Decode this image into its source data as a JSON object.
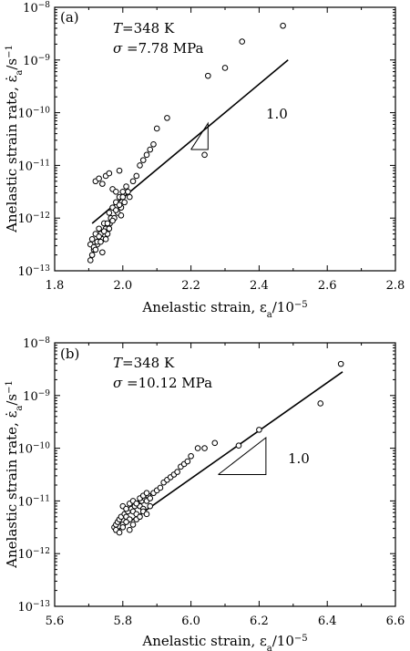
{
  "chart_data": [
    {
      "type": "scatter",
      "panel_label": "(a)",
      "annotations": {
        "temperature": "=348 K",
        "T_symbol": "T",
        "stress": " =7.78 MPa",
        "sigma_symbol": "σ",
        "slope": "1.0"
      },
      "xlabel": "Anelastic strain, ε",
      "xlabel_sub": "a",
      "xlabel_unit": "/10",
      "xlabel_sup": "−5",
      "ylabel": "Anelastic strain rate, ε̇",
      "ylabel_sub": "a",
      "ylabel_unit": "/s",
      "ylabel_sup": "−1",
      "xlim": [
        1.8,
        2.8
      ],
      "ylim_log10": [
        -13,
        -8
      ],
      "y_scale": "log",
      "x_ticks": [
        "1.8",
        "2.0",
        "2.2",
        "2.4",
        "2.6",
        "2.8"
      ],
      "y_ticks": [
        {
          "base": "10",
          "exp": "−13"
        },
        {
          "base": "10",
          "exp": "−12"
        },
        {
          "base": "10",
          "exp": "−11"
        },
        {
          "base": "10",
          "exp": "−10"
        },
        {
          "base": "10",
          "exp": "−9"
        },
        {
          "base": "10",
          "exp": "−8"
        }
      ],
      "fit_line": {
        "x": [
          1.91,
          2.485
        ],
        "log10_y": [
          -12.1,
          -9.0
        ]
      },
      "slope_triangle": {
        "x": [
          2.2,
          2.25
        ],
        "log10_y": [
          -10.7,
          -10.2
        ]
      },
      "points": {
        "x": [
          1.905,
          1.91,
          1.915,
          1.92,
          1.925,
          1.93,
          1.935,
          1.94,
          1.945,
          1.95,
          1.955,
          1.96,
          1.962,
          1.965,
          1.97,
          1.975,
          1.98,
          1.985,
          1.99,
          1.995,
          2.0,
          2.005,
          2.01,
          2.015,
          2.02,
          2.03,
          2.04,
          2.05,
          2.06,
          2.07,
          2.08,
          2.09,
          2.1,
          2.13,
          2.24,
          2.25,
          2.3,
          2.35,
          2.47,
          1.905,
          1.91,
          1.915,
          1.92,
          1.925,
          1.93,
          1.935,
          1.94,
          1.945,
          1.95,
          1.955,
          1.96,
          1.97,
          1.98,
          1.99,
          1.995,
          2.0,
          1.92,
          1.93,
          1.94,
          1.95,
          1.96,
          1.97,
          1.98,
          1.99
        ],
        "log10_y": [
          -12.5,
          -12.4,
          -12.6,
          -12.3,
          -12.5,
          -12.2,
          -12.3,
          -12.4,
          -12.1,
          -12.2,
          -12.3,
          -11.9,
          -12.1,
          -12.0,
          -11.8,
          -12.0,
          -11.7,
          -11.9,
          -11.6,
          -11.8,
          -11.5,
          -11.7,
          -11.4,
          -11.5,
          -11.6,
          -11.3,
          -11.2,
          -11.0,
          -10.9,
          -10.8,
          -10.7,
          -10.6,
          -10.3,
          -10.1,
          -10.8,
          -9.3,
          -9.15,
          -8.65,
          -8.35,
          -12.8,
          -12.7,
          -12.55,
          -12.6,
          -12.45,
          -12.35,
          -12.45,
          -12.65,
          -12.25,
          -12.4,
          -12.1,
          -12.2,
          -12.05,
          -11.85,
          -11.75,
          -11.95,
          -11.6,
          -11.3,
          -11.25,
          -11.35,
          -11.2,
          -11.15,
          -11.45,
          -11.5,
          -11.1
        ]
      }
    },
    {
      "type": "scatter",
      "panel_label": "(b)",
      "annotations": {
        "temperature": "=348 K",
        "T_symbol": "T",
        "stress": " =10.12 MPa",
        "sigma_symbol": "σ",
        "slope": "1.0"
      },
      "xlabel": "Anelastic strain, ε",
      "xlabel_sub": "a",
      "xlabel_unit": "/10",
      "xlabel_sup": "−5",
      "ylabel": "Anelastic strain rate, ε̇",
      "ylabel_sub": "a",
      "ylabel_unit": "/s",
      "ylabel_sup": "−1",
      "xlim": [
        5.6,
        6.6
      ],
      "ylim_log10": [
        -13,
        -8
      ],
      "y_scale": "log",
      "x_ticks": [
        "5.6",
        "5.8",
        "6.0",
        "6.2",
        "6.4",
        "6.6"
      ],
      "y_ticks": [
        {
          "base": "10",
          "exp": "−13"
        },
        {
          "base": "10",
          "exp": "−12"
        },
        {
          "base": "10",
          "exp": "−11"
        },
        {
          "base": "10",
          "exp": "−10"
        },
        {
          "base": "10",
          "exp": "−9"
        },
        {
          "base": "10",
          "exp": "−8"
        }
      ],
      "fit_line": {
        "x": [
          5.775,
          6.445
        ],
        "log10_y": [
          -11.6,
          -8.55
        ]
      },
      "slope_triangle": {
        "x": [
          6.08,
          6.22
        ],
        "log10_y": [
          -10.5,
          -9.8
        ]
      },
      "points": {
        "x": [
          5.775,
          5.78,
          5.785,
          5.79,
          5.795,
          5.8,
          5.805,
          5.81,
          5.815,
          5.82,
          5.825,
          5.83,
          5.835,
          5.84,
          5.845,
          5.85,
          5.855,
          5.86,
          5.865,
          5.87,
          5.875,
          5.88,
          5.89,
          5.9,
          5.91,
          5.92,
          5.93,
          5.94,
          5.95,
          5.96,
          5.97,
          5.98,
          5.99,
          6.0,
          6.02,
          6.04,
          6.07,
          6.14,
          6.2,
          6.38,
          6.44,
          5.78,
          5.79,
          5.8,
          5.81,
          5.82,
          5.83,
          5.84,
          5.85,
          5.86,
          5.87,
          5.88,
          5.8,
          5.81,
          5.82,
          5.83,
          5.84,
          5.85,
          5.86,
          5.87
        ],
        "log10_y": [
          -11.5,
          -11.45,
          -11.4,
          -11.35,
          -11.3,
          -11.45,
          -11.25,
          -11.3,
          -11.2,
          -11.35,
          -11.15,
          -11.2,
          -11.1,
          -11.25,
          -11.05,
          -11.1,
          -11.0,
          -11.15,
          -10.95,
          -11.0,
          -10.9,
          -10.95,
          -10.85,
          -10.8,
          -10.75,
          -10.65,
          -10.6,
          -10.55,
          -10.5,
          -10.45,
          -10.35,
          -10.3,
          -10.25,
          -10.15,
          -10.0,
          -10.0,
          -9.9,
          -9.95,
          -9.65,
          -9.15,
          -8.4,
          -11.55,
          -11.6,
          -11.5,
          -11.4,
          -11.55,
          -11.45,
          -11.35,
          -11.3,
          -11.2,
          -11.25,
          -11.1,
          -11.1,
          -11.15,
          -11.05,
          -11.0,
          -11.05,
          -10.95,
          -10.9,
          -10.85
        ]
      }
    }
  ]
}
